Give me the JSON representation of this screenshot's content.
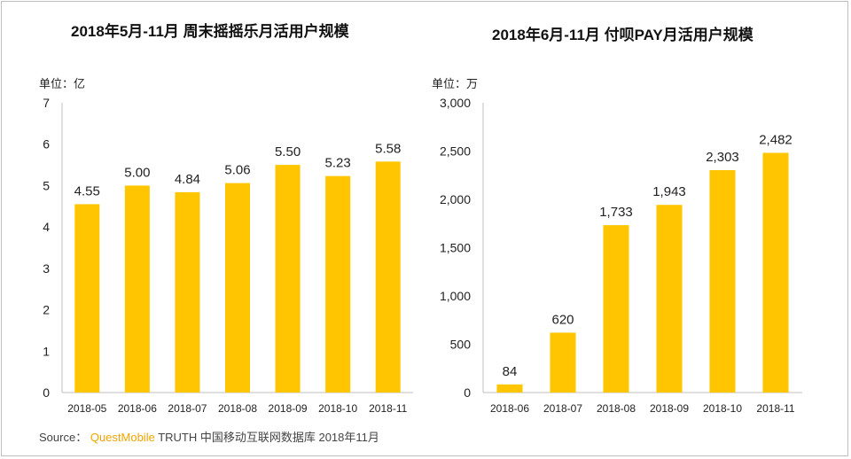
{
  "colors": {
    "bar": "#FFC600",
    "axis": "#BFBFBF",
    "text": "#222222",
    "brand": "#F0A500"
  },
  "unit_prefix": "单位：",
  "chart_data": [
    {
      "type": "bar",
      "title": "2018年5月-11月 周末摇摇乐月活用户规模",
      "unit": "亿",
      "categories": [
        "2018-05",
        "2018-06",
        "2018-07",
        "2018-08",
        "2018-09",
        "2018-10",
        "2018-11"
      ],
      "values": [
        4.55,
        5.0,
        4.84,
        5.06,
        5.5,
        5.23,
        5.58
      ],
      "value_labels": [
        "4.55",
        "5.00",
        "4.84",
        "5.06",
        "5.50",
        "5.23",
        "5.58"
      ],
      "ylim": [
        0,
        7
      ],
      "yticks": [
        0,
        1,
        2,
        3,
        4,
        5,
        6,
        7
      ],
      "ytick_labels": [
        "0",
        "1",
        "2",
        "3",
        "4",
        "5",
        "6",
        "7"
      ]
    },
    {
      "type": "bar",
      "title": "2018年6月-11月 付呗PAY月活用户规模",
      "unit": "万",
      "categories": [
        "2018-06",
        "2018-07",
        "2018-08",
        "2018-09",
        "2018-10",
        "2018-11"
      ],
      "values": [
        84,
        620,
        1733,
        1943,
        2303,
        2482
      ],
      "value_labels": [
        "84",
        "620",
        "1,733",
        "1,943",
        "2,303",
        "2,482"
      ],
      "ylim": [
        0,
        3000
      ],
      "yticks": [
        0,
        500,
        1000,
        1500,
        2000,
        2500,
        3000
      ],
      "ytick_labels": [
        "0",
        "500",
        "1,000",
        "1,500",
        "2,000",
        "2,500",
        "3,000"
      ]
    }
  ],
  "source": {
    "label": "Source：",
    "brand": "QuestMobile",
    "text": " TRUTH 中国移动互联网数据库 2018年11月"
  }
}
